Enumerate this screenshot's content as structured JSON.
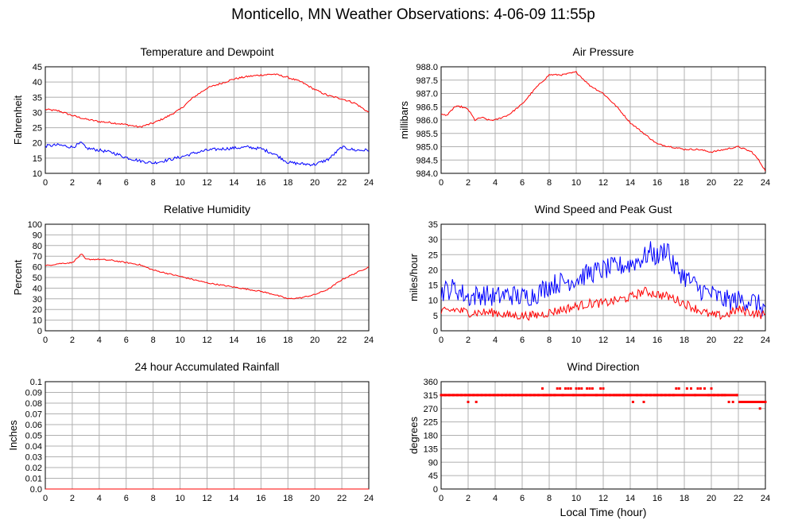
{
  "page": {
    "title": "Monticello, MN Weather Observations: 4-06-09 11:55p"
  },
  "colors": {
    "red": "#ff0000",
    "blue": "#0000ff",
    "grid": "#b0b0b0",
    "frame": "#000000"
  },
  "xaxis_label": "Local Time (hour)",
  "chart_data": [
    {
      "id": "temp",
      "type": "line",
      "title": "Temperature and Dewpoint",
      "ylabel": "Fahrenheit",
      "xlim": [
        0,
        24
      ],
      "ylim": [
        10,
        45
      ],
      "yticks": [
        "10",
        "15",
        "20",
        "25",
        "30",
        "35",
        "40",
        "45"
      ],
      "xticks": [
        "0",
        "2",
        "4",
        "6",
        "8",
        "10",
        "12",
        "14",
        "16",
        "18",
        "20",
        "22",
        "24"
      ],
      "grid": true,
      "series": [
        {
          "color": "red",
          "noise": 0.3,
          "x": [
            0,
            1,
            2,
            3,
            4,
            5,
            6,
            7,
            8,
            9,
            10,
            11,
            12,
            13,
            14,
            15,
            16,
            17,
            18,
            19,
            20,
            21,
            22,
            23,
            24
          ],
          "values": [
            31,
            30.5,
            29,
            27.8,
            27,
            26.6,
            26,
            25.2,
            26.5,
            28.5,
            31,
            35,
            38,
            39.5,
            41,
            41.8,
            42.3,
            42.6,
            41.5,
            40,
            37.5,
            35.5,
            34.5,
            33,
            30
          ]
        },
        {
          "color": "blue",
          "noise": 0.5,
          "x": [
            0,
            1,
            2,
            2.7,
            3,
            4,
            5,
            6,
            7,
            8,
            9,
            10,
            11,
            12,
            13,
            14,
            15,
            16,
            17,
            17.5,
            18,
            19,
            20,
            21,
            22,
            23,
            24
          ],
          "values": [
            19,
            19.3,
            18.6,
            20,
            18.3,
            17.6,
            16.8,
            15.2,
            14.1,
            13.4,
            14.3,
            15.3,
            16.6,
            17.6,
            18,
            18.3,
            18.6,
            18.1,
            16.4,
            15,
            13.6,
            13.1,
            12.9,
            14.6,
            18.6,
            17.6,
            17.6
          ]
        }
      ]
    },
    {
      "id": "pressure",
      "type": "line",
      "title": "Air Pressure",
      "ylabel": "millibars",
      "xlim": [
        0,
        24
      ],
      "ylim": [
        984.0,
        988.0
      ],
      "yticks": [
        "984.0",
        "984.5",
        "985.0",
        "985.5",
        "986.0",
        "986.5",
        "987.0",
        "987.5",
        "988.0"
      ],
      "xticks": [
        "0",
        "2",
        "4",
        "6",
        "8",
        "10",
        "12",
        "14",
        "16",
        "18",
        "20",
        "22",
        "24"
      ],
      "grid": true,
      "series": [
        {
          "color": "red",
          "noise": 0.03,
          "x": [
            0,
            0.5,
            1,
            1.5,
            2,
            2.5,
            3,
            3.5,
            4,
            5,
            6,
            7,
            8,
            9,
            10,
            11,
            12,
            13,
            14,
            15,
            16,
            17,
            18,
            19,
            20,
            21,
            22,
            23,
            23.5,
            24
          ],
          "values": [
            986.2,
            986.2,
            986.5,
            986.5,
            986.4,
            986.0,
            986.1,
            986.0,
            986.0,
            986.2,
            986.6,
            987.2,
            987.7,
            987.7,
            987.8,
            987.3,
            987.0,
            986.5,
            985.9,
            985.5,
            985.1,
            985.0,
            984.9,
            984.9,
            984.8,
            984.9,
            985.0,
            984.8,
            984.5,
            984.1
          ]
        }
      ]
    },
    {
      "id": "humidity",
      "type": "line",
      "title": "Relative Humidity",
      "ylabel": "Percent",
      "xlim": [
        0,
        24
      ],
      "ylim": [
        0,
        100
      ],
      "yticks": [
        "0",
        "10",
        "20",
        "30",
        "40",
        "50",
        "60",
        "70",
        "80",
        "90",
        "100"
      ],
      "xticks": [
        "0",
        "2",
        "4",
        "6",
        "8",
        "10",
        "12",
        "14",
        "16",
        "18",
        "20",
        "22",
        "24"
      ],
      "grid": true,
      "series": [
        {
          "color": "red",
          "noise": 0.6,
          "x": [
            0,
            1,
            2,
            2.7,
            3,
            4,
            5,
            6,
            7,
            8,
            9,
            10,
            11,
            12,
            13,
            14,
            15,
            16,
            17,
            18,
            19,
            20,
            21,
            22,
            23,
            24
          ],
          "values": [
            61,
            63,
            64,
            72,
            67,
            67,
            66,
            64,
            62,
            57,
            54,
            51,
            48,
            45,
            43,
            41,
            39,
            37,
            34,
            30,
            31,
            34,
            39,
            48,
            54,
            60
          ]
        }
      ]
    },
    {
      "id": "wind",
      "type": "line",
      "title": "Wind Speed and Peak Gust",
      "ylabel": "miles/hour",
      "xlim": [
        0,
        24
      ],
      "ylim": [
        0,
        35
      ],
      "yticks": [
        "0",
        "5",
        "10",
        "15",
        "20",
        "25",
        "30",
        "35"
      ],
      "xticks": [
        "0",
        "2",
        "4",
        "6",
        "8",
        "10",
        "12",
        "14",
        "16",
        "18",
        "20",
        "22",
        "24"
      ],
      "grid": true,
      "series": [
        {
          "color": "blue",
          "noise": 3.5,
          "x": [
            0,
            1,
            2,
            3,
            4,
            5,
            6,
            7,
            8,
            9,
            10,
            11,
            12,
            13,
            14,
            15,
            15.5,
            16,
            16.8,
            17,
            18,
            19,
            20,
            21,
            22,
            23,
            24
          ],
          "values": [
            13,
            14,
            11,
            12,
            11,
            12,
            11,
            12,
            15,
            16,
            17,
            19,
            20,
            21,
            22,
            24,
            26,
            24,
            28,
            22,
            18,
            14,
            12,
            10,
            10,
            10,
            7
          ]
        },
        {
          "color": "red",
          "noise": 1.5,
          "x": [
            0,
            1,
            2,
            3,
            4,
            5,
            6,
            7,
            8,
            9,
            10,
            11,
            12,
            13,
            14,
            15,
            16,
            17,
            18,
            19,
            20,
            21,
            22,
            23,
            24
          ],
          "values": [
            6,
            7,
            6,
            6,
            6,
            5,
            5,
            5,
            6,
            7,
            8,
            9,
            9,
            10,
            11,
            13,
            12,
            11,
            9,
            7,
            5,
            5,
            7,
            6,
            5
          ]
        }
      ]
    },
    {
      "id": "rain",
      "type": "line",
      "title": "24 hour Accumulated Rainfall",
      "ylabel": "Inches",
      "xlim": [
        0,
        24
      ],
      "ylim": [
        0,
        0.1
      ],
      "yticks": [
        "0.0",
        "0.01",
        "0.02",
        "0.03",
        "0.04",
        "0.05",
        "0.06",
        "0.07",
        "0.08",
        "0.09",
        "0.1"
      ],
      "xticks": [
        "0",
        "2",
        "4",
        "6",
        "8",
        "10",
        "12",
        "14",
        "16",
        "18",
        "20",
        "22",
        "24"
      ],
      "grid": true,
      "series": [
        {
          "color": "red",
          "noise": 0,
          "x": [
            0,
            24
          ],
          "values": [
            0,
            0
          ]
        }
      ]
    },
    {
      "id": "direction",
      "type": "scatter",
      "title": "Wind Direction",
      "ylabel": "degrees",
      "xlabel": "Local Time (hour)",
      "xlim": [
        0,
        24
      ],
      "ylim": [
        0,
        360
      ],
      "yticks": [
        "0",
        "45",
        "90",
        "135",
        "180",
        "225",
        "270",
        "315",
        "360"
      ],
      "xticks": [
        "0",
        "2",
        "4",
        "6",
        "8",
        "10",
        "12",
        "14",
        "16",
        "18",
        "20",
        "22",
        "24"
      ],
      "grid": true,
      "series": [
        {
          "color": "red",
          "x": [
            0,
            0.3,
            0.6,
            0.9,
            1.2,
            1.5,
            1.8,
            2.0,
            2.1,
            2.4,
            2.6,
            2.7,
            3.0,
            3.3,
            3.6,
            3.9,
            4.2,
            4.5,
            4.8,
            5.1,
            5.4,
            5.7,
            6.0,
            6.3,
            6.6,
            6.9,
            7.2,
            7.5,
            7.6,
            7.8,
            8.1,
            8.4,
            8.6,
            8.8,
            9.0,
            9.2,
            9.4,
            9.6,
            9.8,
            10.0,
            10.2,
            10.4,
            10.6,
            10.8,
            11.0,
            11.2,
            11.5,
            11.8,
            12.0,
            12.2,
            12.5,
            12.8,
            13.0,
            13.2,
            13.5,
            13.8,
            14.0,
            14.2,
            14.5,
            14.8,
            15.0,
            15.2,
            15.5,
            15.8,
            16.0,
            16.3,
            16.6,
            16.9,
            17.2,
            17.4,
            17.6,
            17.9,
            18.2,
            18.5,
            18.8,
            19.0,
            19.2,
            19.5,
            19.8,
            20.0,
            20.2,
            20.5,
            20.8,
            21.0,
            21.3,
            21.6,
            21.9,
            22.1,
            22.3,
            22.5,
            22.7,
            22.9,
            23.1,
            23.3,
            23.5,
            23.6,
            23.8,
            24.0
          ],
          "values": [
            315,
            315,
            315,
            315,
            315,
            315,
            315,
            292,
            315,
            315,
            292,
            315,
            315,
            315,
            315,
            315,
            315,
            315,
            315,
            315,
            315,
            315,
            315,
            315,
            315,
            315,
            315,
            337,
            315,
            315,
            315,
            315,
            337,
            337,
            315,
            337,
            337,
            337,
            315,
            337,
            337,
            337,
            315,
            337,
            337,
            337,
            315,
            337,
            337,
            315,
            315,
            315,
            315,
            315,
            315,
            315,
            315,
            292,
            315,
            315,
            292,
            315,
            315,
            315,
            315,
            315,
            315,
            315,
            315,
            337,
            337,
            315,
            337,
            337,
            315,
            337,
            337,
            337,
            315,
            337,
            315,
            315,
            315,
            315,
            292,
            292,
            315,
            292,
            292,
            292,
            292,
            292,
            292,
            292,
            292,
            270,
            292,
            292
          ]
        }
      ]
    }
  ]
}
